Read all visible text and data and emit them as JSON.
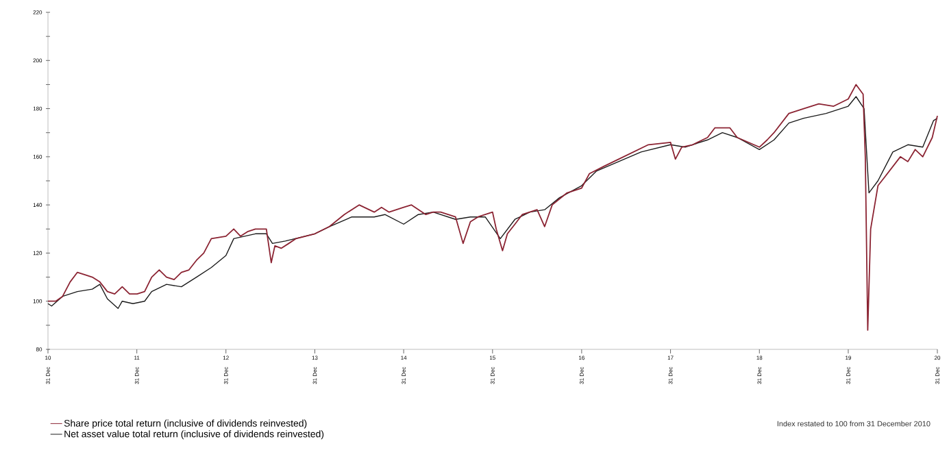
{
  "chart_data": {
    "type": "line",
    "xlim": [
      "2010-12-31",
      "2020-12-31"
    ],
    "ylim": [
      80,
      220
    ],
    "xticks": [
      {
        "value": "2010-12-31",
        "label": "10"
      },
      {
        "value": "2011-12-31",
        "label": "11"
      },
      {
        "value": "2012-12-31",
        "label": "12"
      },
      {
        "value": "2013-12-31",
        "label": "13"
      },
      {
        "value": "2014-12-31",
        "label": "14"
      },
      {
        "value": "2015-12-31",
        "label": "15"
      },
      {
        "value": "2016-12-31",
        "label": "16"
      },
      {
        "value": "2017-12-31",
        "label": "17"
      },
      {
        "value": "2018-12-31",
        "label": "18"
      },
      {
        "value": "2019-12-31",
        "label": "19"
      },
      {
        "value": "2020-12-31",
        "label": "20"
      }
    ],
    "yticks": [
      80,
      {
        "value": 90,
        "label": null
      },
      100,
      {
        "value": 110,
        "label": null
      },
      120,
      {
        "value": 130,
        "label": null
      },
      140,
      {
        "value": 150,
        "label": null
      },
      160,
      {
        "value": 170,
        "label": null
      },
      180,
      {
        "value": 190,
        "label": null
      },
      200,
      {
        "value": 210,
        "label": null
      },
      220
    ],
    "legend": "bottom left",
    "line_style": "solid",
    "annotations": [
      "31 Dec",
      "31 Dec",
      "31 Dec",
      "31 Dec",
      "31 Dec",
      "31 Dec",
      "31 Dec",
      "31 Dec",
      "31 Dec",
      "31 Dec",
      "31 Dec",
      "Index restated to 100 from 31 December 2010"
    ],
    "series": [
      {
        "name": "Net asset value total return (inclusive of dividends reinvested)",
        "color": "#1a1a1a",
        "x": [
          "2010-12-31",
          "2011-01-15",
          "2011-03-01",
          "2011-05-01",
          "2011-07-01",
          "2011-08-01",
          "2011-09-01",
          "2011-10-15",
          "2011-11-01",
          "2011-12-15",
          "2012-02-01",
          "2012-03-01",
          "2012-05-01",
          "2012-07-01",
          "2012-09-01",
          "2012-11-01",
          "2012-12-31",
          "2013-02-01",
          "2013-05-01",
          "2013-06-15",
          "2013-07-10",
          "2013-09-01",
          "2013-12-31",
          "2014-03-01",
          "2014-06-01",
          "2014-09-01",
          "2014-10-15",
          "2014-12-31",
          "2015-03-01",
          "2015-05-01",
          "2015-08-01",
          "2015-10-01",
          "2015-12-01",
          "2016-02-01",
          "2016-04-01",
          "2016-06-01",
          "2016-08-01",
          "2016-10-01",
          "2016-12-31",
          "2017-03-01",
          "2017-06-01",
          "2017-09-01",
          "2017-12-31",
          "2018-03-01",
          "2018-06-01",
          "2018-08-01",
          "2018-10-01",
          "2018-12-31",
          "2019-03-01",
          "2019-05-01",
          "2019-07-01",
          "2019-10-01",
          "2019-12-31",
          "2020-02-01",
          "2020-03-05",
          "2020-03-25",
          "2020-05-01",
          "2020-07-01",
          "2020-09-01",
          "2020-11-01",
          "2020-12-15",
          "2020-12-31"
        ],
        "values": [
          99,
          98,
          102,
          104,
          105,
          107,
          101,
          97,
          100,
          99,
          100,
          104,
          107,
          106,
          110,
          114,
          119,
          126,
          128,
          128,
          124,
          125,
          128,
          131,
          135,
          135,
          136,
          132,
          136,
          137,
          134,
          135,
          135,
          126,
          134,
          137,
          138,
          143,
          148,
          154,
          158,
          162,
          165,
          164,
          167,
          170,
          168,
          163,
          167,
          174,
          176,
          178,
          181,
          185,
          180,
          145,
          150,
          162,
          165,
          164,
          175,
          176
        ]
      },
      {
        "name": "Share price total return (inclusive of dividends reinvested)",
        "color": "#8b2332",
        "x": [
          "2010-12-31",
          "2011-02-01",
          "2011-03-01",
          "2011-04-01",
          "2011-05-01",
          "2011-06-01",
          "2011-07-01",
          "2011-08-01",
          "2011-09-01",
          "2011-10-01",
          "2011-11-01",
          "2011-12-01",
          "2012-01-01",
          "2012-02-01",
          "2012-03-01",
          "2012-04-01",
          "2012-05-01",
          "2012-06-01",
          "2012-07-01",
          "2012-08-01",
          "2012-09-01",
          "2012-10-01",
          "2012-11-01",
          "2012-12-31",
          "2013-02-01",
          "2013-03-01",
          "2013-04-01",
          "2013-05-01",
          "2013-06-15",
          "2013-07-05",
          "2013-07-20",
          "2013-08-15",
          "2013-09-15",
          "2013-10-15",
          "2013-12-31",
          "2014-03-01",
          "2014-05-01",
          "2014-07-01",
          "2014-09-01",
          "2014-10-01",
          "2014-11-01",
          "2014-12-31",
          "2015-02-01",
          "2015-04-01",
          "2015-05-01",
          "2015-06-01",
          "2015-08-01",
          "2015-09-01",
          "2015-10-01",
          "2015-11-01",
          "2015-12-31",
          "2016-01-15",
          "2016-02-10",
          "2016-03-01",
          "2016-04-01",
          "2016-05-01",
          "2016-07-01",
          "2016-08-01",
          "2016-09-01",
          "2016-11-01",
          "2016-12-31",
          "2017-02-01",
          "2017-04-01",
          "2017-06-01",
          "2017-08-01",
          "2017-10-01",
          "2017-12-31",
          "2018-01-20",
          "2018-02-15",
          "2018-04-01",
          "2018-06-01",
          "2018-07-01",
          "2018-09-01",
          "2018-10-01",
          "2018-12-31",
          "2019-02-01",
          "2019-03-01",
          "2019-05-01",
          "2019-07-01",
          "2019-09-01",
          "2019-11-01",
          "2019-12-31",
          "2020-02-01",
          "2020-03-01",
          "2020-03-10",
          "2020-03-20",
          "2020-04-01",
          "2020-05-01",
          "2020-06-01",
          "2020-08-01",
          "2020-09-01",
          "2020-10-01",
          "2020-11-01",
          "2020-12-10",
          "2020-12-31"
        ],
        "values": [
          100,
          100,
          102,
          108,
          112,
          111,
          110,
          108,
          104,
          103,
          106,
          103,
          103,
          104,
          110,
          113,
          110,
          109,
          112,
          113,
          117,
          120,
          126,
          127,
          130,
          127,
          129,
          130,
          130,
          116,
          123,
          122,
          124,
          126,
          128,
          131,
          136,
          140,
          137,
          139,
          137,
          139,
          140,
          136,
          137,
          137,
          135,
          124,
          133,
          135,
          137,
          130,
          121,
          128,
          132,
          136,
          138,
          131,
          140,
          145,
          147,
          153,
          156,
          159,
          162,
          165,
          166,
          159,
          164,
          165,
          168,
          172,
          172,
          168,
          164,
          167,
          170,
          178,
          180,
          182,
          181,
          184,
          190,
          186,
          160,
          88,
          130,
          148,
          152,
          160,
          158,
          163,
          160,
          168,
          177
        ]
      }
    ]
  }
}
